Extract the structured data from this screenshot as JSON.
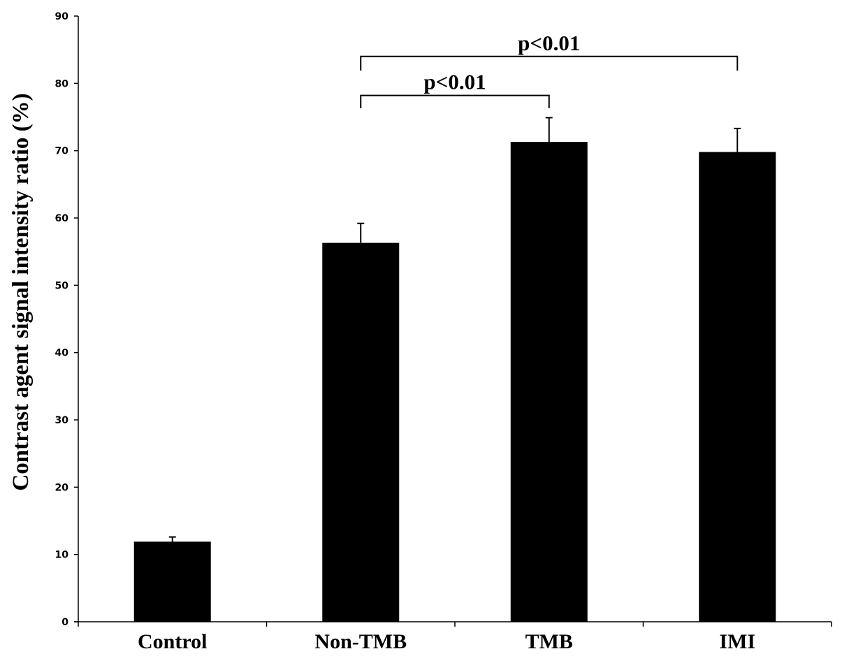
{
  "chart_data": {
    "type": "bar",
    "title": "",
    "xlabel": "",
    "ylabel": "Contrast agent signal intensity ratio (%)",
    "ylim": [
      0,
      90
    ],
    "yticks": [
      0,
      10,
      20,
      30,
      40,
      50,
      60,
      70,
      80,
      90
    ],
    "categories": [
      "Control",
      "Non-TMB",
      "TMB",
      "IMI"
    ],
    "values": [
      11.9,
      56.3,
      71.3,
      69.8
    ],
    "errors": [
      0.7,
      2.9,
      3.6,
      3.5
    ],
    "bar_color": "#000000",
    "grid": false,
    "legend": "none",
    "annotations": [
      {
        "text": "p<0.01",
        "from": "Non-TMB",
        "to": "TMB",
        "y_bottom": 76.3,
        "y_top": 78.2
      },
      {
        "text": "p<0.01",
        "from": "Non-TMB",
        "to": "IMI",
        "y_bottom": 81.9,
        "y_top": 84.0
      }
    ]
  }
}
